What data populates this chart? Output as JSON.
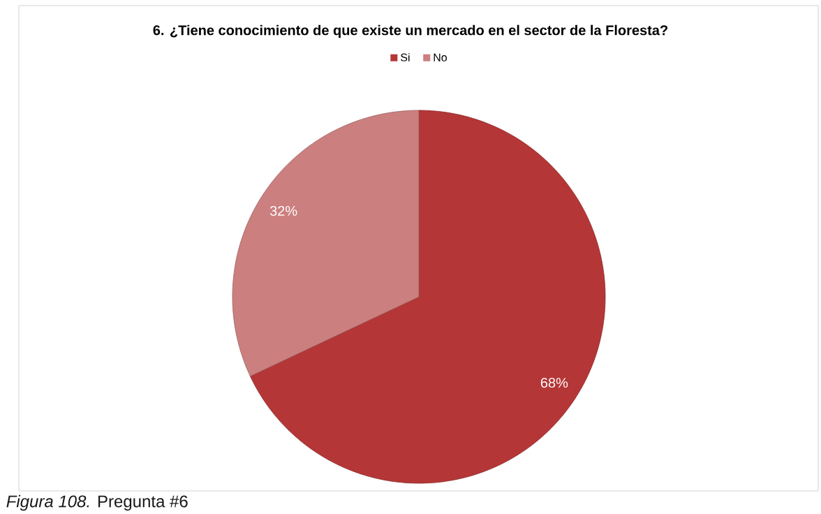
{
  "chart_data": {
    "type": "pie",
    "title": "6. ¿Tiene conocimiento de que existe un mercado en el sector de la Floresta?",
    "categories": [
      "Si",
      "No"
    ],
    "values": [
      68,
      32
    ],
    "colors": [
      "#b53636",
      "#cc7f7f"
    ],
    "value_labels": [
      "68%",
      "32%"
    ],
    "legend": "top",
    "annotations": [
      "*Figura 108.* Pregunta #6"
    ]
  }
}
